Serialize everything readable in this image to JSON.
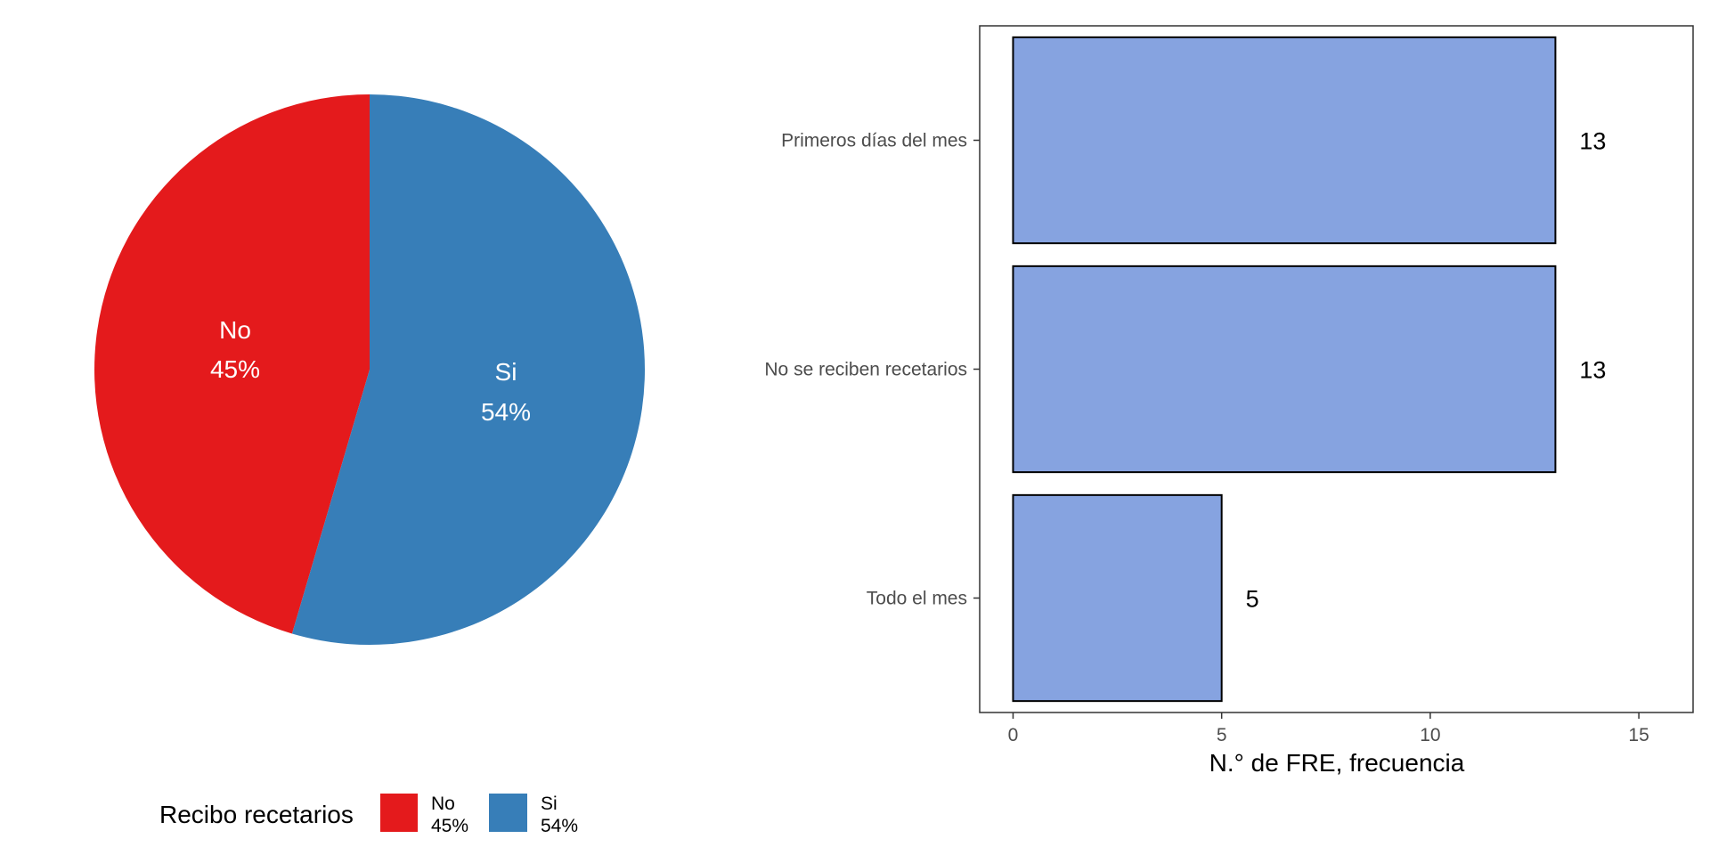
{
  "chart_data": [
    {
      "type": "pie",
      "slices": [
        {
          "label": "No",
          "percent_label": "45%",
          "value": 45,
          "color": "#E41A1C"
        },
        {
          "label": "Si",
          "percent_label": "54%",
          "value": 54,
          "color": "#377EB8"
        }
      ],
      "legend": {
        "title": "Recibo recetarios",
        "placement": "bottom",
        "items": [
          {
            "label": "No",
            "percent_label": "45%",
            "color": "#E41A1C"
          },
          {
            "label": "Si",
            "percent_label": "54%",
            "color": "#377EB8"
          }
        ]
      }
    },
    {
      "type": "bar",
      "orientation": "horizontal",
      "categories": [
        "Primeros días del mes",
        "No se reciben recetarios",
        "Todo el mes"
      ],
      "values": [
        13,
        13,
        5
      ],
      "data_labels": [
        "13",
        "13",
        "5"
      ],
      "xlabel": "N.° de FRE, frecuencia",
      "xlim": [
        -0.8,
        16.3
      ],
      "xticks": [
        0,
        5,
        10,
        15
      ],
      "xtick_labels": [
        "0",
        "5",
        "10",
        "15"
      ],
      "bar_color": "#86A3E0",
      "bar_edge_color": "#000000",
      "grid": false
    }
  ]
}
